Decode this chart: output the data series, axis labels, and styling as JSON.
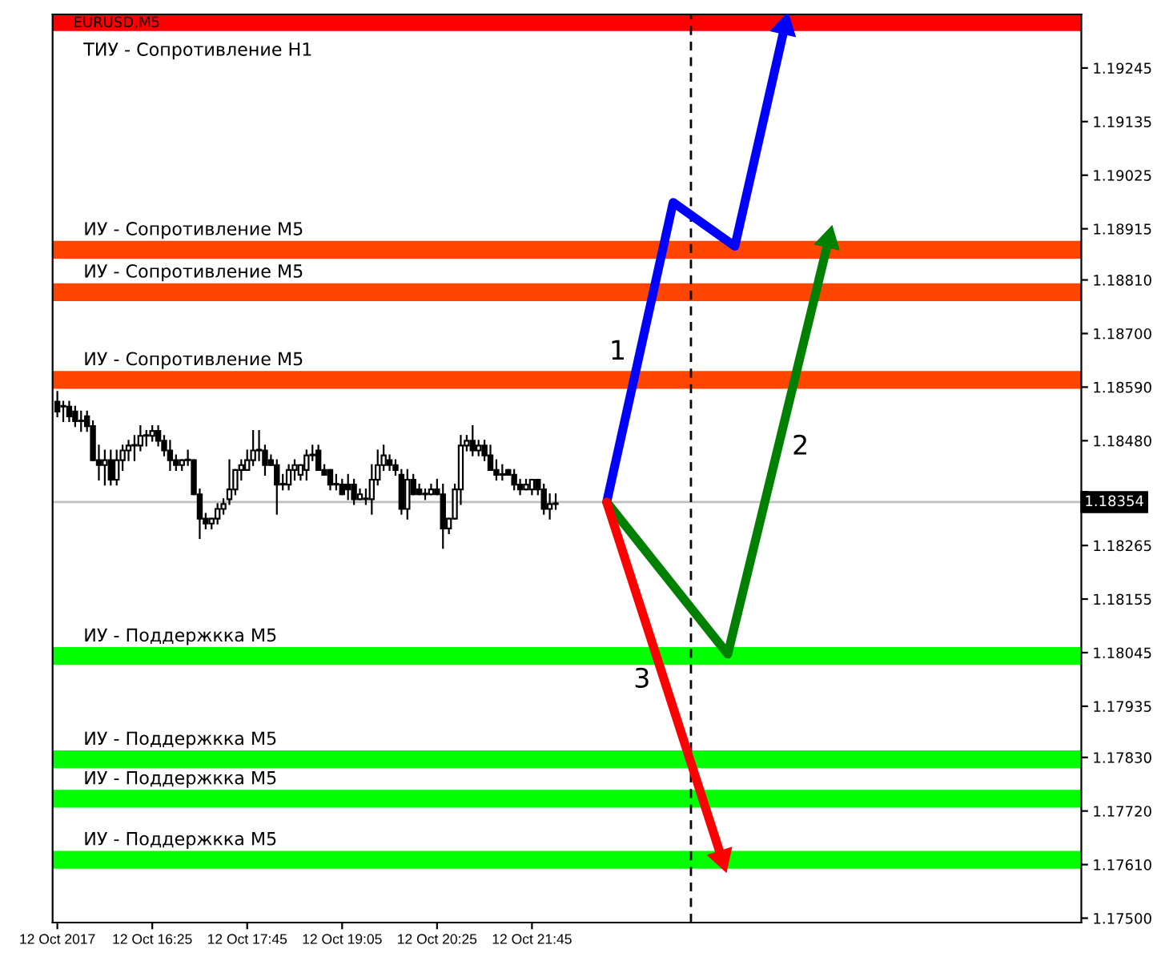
{
  "chart_data": {
    "type": "candlestick",
    "title": "EURUSD,M5",
    "x": [
      "2017-10-12T15:05",
      "2017-10-12T15:10",
      "2017-10-12T15:15",
      "2017-10-12T15:20",
      "2017-10-12T15:25",
      "2017-10-12T15:30",
      "2017-10-12T15:35",
      "2017-10-12T15:40",
      "2017-10-12T15:45",
      "2017-10-12T15:50",
      "2017-10-12T15:55",
      "2017-10-12T16:00",
      "2017-10-12T16:05",
      "2017-10-12T16:10",
      "2017-10-12T16:15",
      "2017-10-12T16:20",
      "2017-10-12T16:25",
      "2017-10-12T16:30",
      "2017-10-12T16:35",
      "2017-10-12T16:40",
      "2017-10-12T16:45",
      "2017-10-12T16:50",
      "2017-10-12T16:55",
      "2017-10-12T17:00",
      "2017-10-12T17:05",
      "2017-10-12T17:10",
      "2017-10-12T17:15",
      "2017-10-12T17:20",
      "2017-10-12T17:25",
      "2017-10-12T17:30",
      "2017-10-12T17:35",
      "2017-10-12T17:40",
      "2017-10-12T17:45",
      "2017-10-12T17:50",
      "2017-10-12T17:55",
      "2017-10-12T18:00",
      "2017-10-12T18:05",
      "2017-10-12T18:10",
      "2017-10-12T18:15",
      "2017-10-12T18:20",
      "2017-10-12T18:25",
      "2017-10-12T18:30",
      "2017-10-12T18:35",
      "2017-10-12T18:40",
      "2017-10-12T18:45",
      "2017-10-12T18:50",
      "2017-10-12T18:55",
      "2017-10-12T19:00",
      "2017-10-12T19:05",
      "2017-10-12T19:10",
      "2017-10-12T19:15",
      "2017-10-12T19:20",
      "2017-10-12T19:25",
      "2017-10-12T19:30",
      "2017-10-12T19:35",
      "2017-10-12T19:40",
      "2017-10-12T19:45",
      "2017-10-12T19:50",
      "2017-10-12T19:55",
      "2017-10-12T20:00",
      "2017-10-12T20:05",
      "2017-10-12T20:10",
      "2017-10-12T20:15",
      "2017-10-12T20:20",
      "2017-10-12T20:25",
      "2017-10-12T20:30",
      "2017-10-12T20:35",
      "2017-10-12T20:40",
      "2017-10-12T20:45",
      "2017-10-12T20:50",
      "2017-10-12T20:55",
      "2017-10-12T21:00",
      "2017-10-12T21:05",
      "2017-10-12T21:10",
      "2017-10-12T21:15",
      "2017-10-12T21:20",
      "2017-10-12T21:25",
      "2017-10-12T21:30",
      "2017-10-12T21:35",
      "2017-10-12T21:40",
      "2017-10-12T21:45",
      "2017-10-12T21:50",
      "2017-10-12T21:55",
      "2017-10-12T22:00",
      "2017-10-12T22:05"
    ],
    "ohlc": [
      [
        1.1856,
        1.1858,
        1.1853,
        1.1854
      ],
      [
        1.1855,
        1.1856,
        1.1852,
        1.1855
      ],
      [
        1.1855,
        1.1856,
        1.1852,
        1.1853
      ],
      [
        1.1854,
        1.1855,
        1.1851,
        1.1852
      ],
      [
        1.1852,
        1.1854,
        1.185,
        1.1852
      ],
      [
        1.1853,
        1.1854,
        1.185,
        1.1851
      ],
      [
        1.1851,
        1.1852,
        1.1844,
        1.1844
      ],
      [
        1.1844,
        1.1847,
        1.184,
        1.1843
      ],
      [
        1.1843,
        1.1846,
        1.1839,
        1.1844
      ],
      [
        1.1844,
        1.1846,
        1.1839,
        1.184
      ],
      [
        1.184,
        1.1846,
        1.1839,
        1.1844
      ],
      [
        1.1844,
        1.1847,
        1.1842,
        1.1846
      ],
      [
        1.1846,
        1.1848,
        1.1844,
        1.1847
      ],
      [
        1.1847,
        1.1849,
        1.1844,
        1.1847
      ],
      [
        1.1847,
        1.1851,
        1.1846,
        1.1849
      ],
      [
        1.1849,
        1.185,
        1.1847,
        1.1849
      ],
      [
        1.1849,
        1.1851,
        1.1848,
        1.185
      ],
      [
        1.185,
        1.1851,
        1.1847,
        1.1848
      ],
      [
        1.1848,
        1.1849,
        1.1845,
        1.1846
      ],
      [
        1.1846,
        1.1848,
        1.1842,
        1.1844
      ],
      [
        1.1844,
        1.1845,
        1.1842,
        1.1843
      ],
      [
        1.1843,
        1.1844,
        1.1842,
        1.1844
      ],
      [
        1.1844,
        1.1846,
        1.1843,
        1.1844
      ],
      [
        1.1844,
        1.1844,
        1.1837,
        1.1837
      ],
      [
        1.1837,
        1.1838,
        1.1828,
        1.1832
      ],
      [
        1.1832,
        1.1833,
        1.183,
        1.1831
      ],
      [
        1.1831,
        1.1832,
        1.183,
        1.1832
      ],
      [
        1.1832,
        1.1835,
        1.1831,
        1.1834
      ],
      [
        1.1834,
        1.1836,
        1.1833,
        1.1835
      ],
      [
        1.1836,
        1.1844,
        1.1835,
        1.1838
      ],
      [
        1.1838,
        1.1842,
        1.1837,
        1.1842
      ],
      [
        1.1842,
        1.1844,
        1.184,
        1.1843
      ],
      [
        1.1842,
        1.1846,
        1.1842,
        1.1844
      ],
      [
        1.1844,
        1.185,
        1.1843,
        1.1846
      ],
      [
        1.1846,
        1.185,
        1.1844,
        1.1846
      ],
      [
        1.1846,
        1.1847,
        1.1841,
        1.1843
      ],
      [
        1.1844,
        1.1845,
        1.1843,
        1.1843
      ],
      [
        1.1843,
        1.1844,
        1.1833,
        1.1839
      ],
      [
        1.1839,
        1.1841,
        1.1838,
        1.1839
      ],
      [
        1.1839,
        1.1843,
        1.1838,
        1.1842
      ],
      [
        1.1842,
        1.1844,
        1.184,
        1.1843
      ],
      [
        1.1841,
        1.1843,
        1.184,
        1.1843
      ],
      [
        1.1842,
        1.1846,
        1.184,
        1.1845
      ],
      [
        1.1845,
        1.1847,
        1.1844,
        1.1845
      ],
      [
        1.1846,
        1.1847,
        1.1842,
        1.1842
      ],
      [
        1.1842,
        1.1843,
        1.1841,
        1.1841
      ],
      [
        1.1842,
        1.1842,
        1.1838,
        1.1839
      ],
      [
        1.1839,
        1.1841,
        1.1838,
        1.1839
      ],
      [
        1.1839,
        1.184,
        1.1837,
        1.1837
      ],
      [
        1.1839,
        1.1841,
        1.1836,
        1.1838
      ],
      [
        1.1839,
        1.184,
        1.1835,
        1.1836
      ],
      [
        1.1836,
        1.1838,
        1.1836,
        1.1837
      ],
      [
        1.1836,
        1.1838,
        1.1835,
        1.1836
      ],
      [
        1.1836,
        1.1843,
        1.1833,
        1.184
      ],
      [
        1.184,
        1.1846,
        1.1839,
        1.1843
      ],
      [
        1.1843,
        1.1847,
        1.1842,
        1.1845
      ],
      [
        1.1844,
        1.1845,
        1.1842,
        1.1843
      ],
      [
        1.1843,
        1.1844,
        1.1841,
        1.1842
      ],
      [
        1.1841,
        1.1842,
        1.1833,
        1.1834
      ],
      [
        1.1834,
        1.1842,
        1.1832,
        1.184
      ],
      [
        1.184,
        1.1841,
        1.1837,
        1.1837
      ],
      [
        1.1838,
        1.1839,
        1.1837,
        1.1837
      ],
      [
        1.1837,
        1.1838,
        1.1836,
        1.1837
      ],
      [
        1.1837,
        1.1839,
        1.1837,
        1.1838
      ],
      [
        1.1838,
        1.184,
        1.1837,
        1.1837
      ],
      [
        1.1837,
        1.1839,
        1.1826,
        1.183
      ],
      [
        1.183,
        1.1832,
        1.1829,
        1.1832
      ],
      [
        1.1832,
        1.1839,
        1.1832,
        1.1838
      ],
      [
        1.1838,
        1.1849,
        1.1835,
        1.1847
      ],
      [
        1.1847,
        1.1849,
        1.1846,
        1.1848
      ],
      [
        1.1848,
        1.1851,
        1.1845,
        1.1846
      ],
      [
        1.1846,
        1.1848,
        1.1845,
        1.1847
      ],
      [
        1.1847,
        1.1848,
        1.1844,
        1.1845
      ],
      [
        1.1845,
        1.1847,
        1.1842,
        1.1842
      ],
      [
        1.1842,
        1.1844,
        1.184,
        1.1841
      ],
      [
        1.1841,
        1.1843,
        1.184,
        1.1841
      ],
      [
        1.1842,
        1.1842,
        1.1841,
        1.1841
      ],
      [
        1.1841,
        1.1842,
        1.1838,
        1.1839
      ],
      [
        1.1839,
        1.184,
        1.1837,
        1.1838
      ],
      [
        1.1838,
        1.184,
        1.1838,
        1.1839
      ],
      [
        1.1838,
        1.184,
        1.1837,
        1.184
      ],
      [
        1.184,
        1.184,
        1.1837,
        1.1838
      ],
      [
        1.1838,
        1.1839,
        1.1833,
        1.1834
      ],
      [
        1.1834,
        1.1837,
        1.1832,
        1.1835
      ],
      [
        1.1835,
        1.1837,
        1.1834,
        1.1835
      ]
    ],
    "series": [
      {
        "type": "line",
        "name": "1",
        "color": "#0000ff",
        "x": [
          "2017-10-12T22:48",
          "2017-10-12T23:44",
          "2017-10-13T00:36",
          "2017-10-13T01:18"
        ],
        "values": [
          1.18354,
          1.18969,
          1.18879,
          1.1933
        ]
      },
      {
        "type": "line",
        "name": "2",
        "color": "#008000",
        "x": [
          "2017-10-12T22:48",
          "2017-10-13T00:30",
          "2017-10-13T01:55"
        ],
        "values": [
          1.18354,
          1.18042,
          1.18892
        ]
      },
      {
        "type": "line",
        "name": "3",
        "color": "#ff0000",
        "x": [
          "2017-10-12T22:48",
          "2017-10-13T00:25"
        ],
        "values": [
          1.18354,
          1.17623
        ]
      }
    ],
    "xlim": [
      "2017-10-12T15:01",
      "2017-10-13T05:28"
    ],
    "xticks": [
      {
        "value": "2017-10-12T15:05",
        "label": "12 Oct 2017"
      },
      {
        "value": "2017-10-12T16:25",
        "label": "12 Oct 16:25"
      },
      {
        "value": "2017-10-12T17:45",
        "label": "12 Oct 17:45"
      },
      {
        "value": "2017-10-12T19:05",
        "label": "12 Oct 19:05"
      },
      {
        "value": "2017-10-12T20:25",
        "label": "12 Oct 20:25"
      },
      {
        "value": "2017-10-12T21:45",
        "label": "12 Oct 21:45"
      }
    ],
    "ylim": [
      1.17491,
      1.19355
    ],
    "yticks": [
      {
        "value": 1.175,
        "label": "1.17500"
      },
      {
        "value": 1.1761,
        "label": "1.17610"
      },
      {
        "value": 1.1772,
        "label": "1.17720"
      },
      {
        "value": 1.1783,
        "label": "1.17830"
      },
      1.17935,
      1.18045,
      1.18155,
      1.18265,
      {
        "value": 1.18375,
        "label": null
      },
      {
        "value": 1.1848,
        "label": "1.18480"
      },
      {
        "value": 1.1859,
        "label": "1.18590"
      },
      {
        "value": 1.187,
        "label": "1.18700"
      },
      {
        "value": 1.1881,
        "label": "1.18810"
      },
      1.18915,
      1.19025,
      1.19135,
      1.19245
    ],
    "ref_lines": [
      {
        "axis": "y",
        "value": 1.19339,
        "label": "ТИУ - Сопротивление H1",
        "color": "#ff0000"
      },
      {
        "axis": "y",
        "value": 1.18872,
        "label": "ИУ - Сопротивление M5",
        "color": "#ff4500"
      },
      {
        "axis": "y",
        "value": 1.18785,
        "label": "ИУ - Сопротивление M5",
        "color": "#ff4500"
      },
      {
        "axis": "y",
        "value": 1.18605,
        "label": "ИУ - Сопротивление M5",
        "color": "#ff4500"
      },
      {
        "axis": "y",
        "value": 1.18038,
        "label": "ИУ - Поддержкка M5",
        "color": "#00ff00"
      },
      {
        "axis": "y",
        "value": 1.17826,
        "label": "ИУ - Поддержкка M5",
        "color": "#00ff00"
      },
      {
        "axis": "y",
        "value": 1.17745,
        "label": "ИУ - Поддержкка M5",
        "color": "#00ff00"
      },
      {
        "axis": "y",
        "value": 1.1762,
        "label": "ИУ - Поддержкка M5",
        "color": "#00ff00"
      },
      {
        "axis": "y",
        "value": 1.18354,
        "label": "1.18354",
        "color": "#c0c0c0"
      },
      {
        "axis": "x",
        "value": "2017-10-12T23:59",
        "color": "#000000",
        "line_style": "dashed"
      }
    ],
    "grid": false,
    "legend": false
  }
}
